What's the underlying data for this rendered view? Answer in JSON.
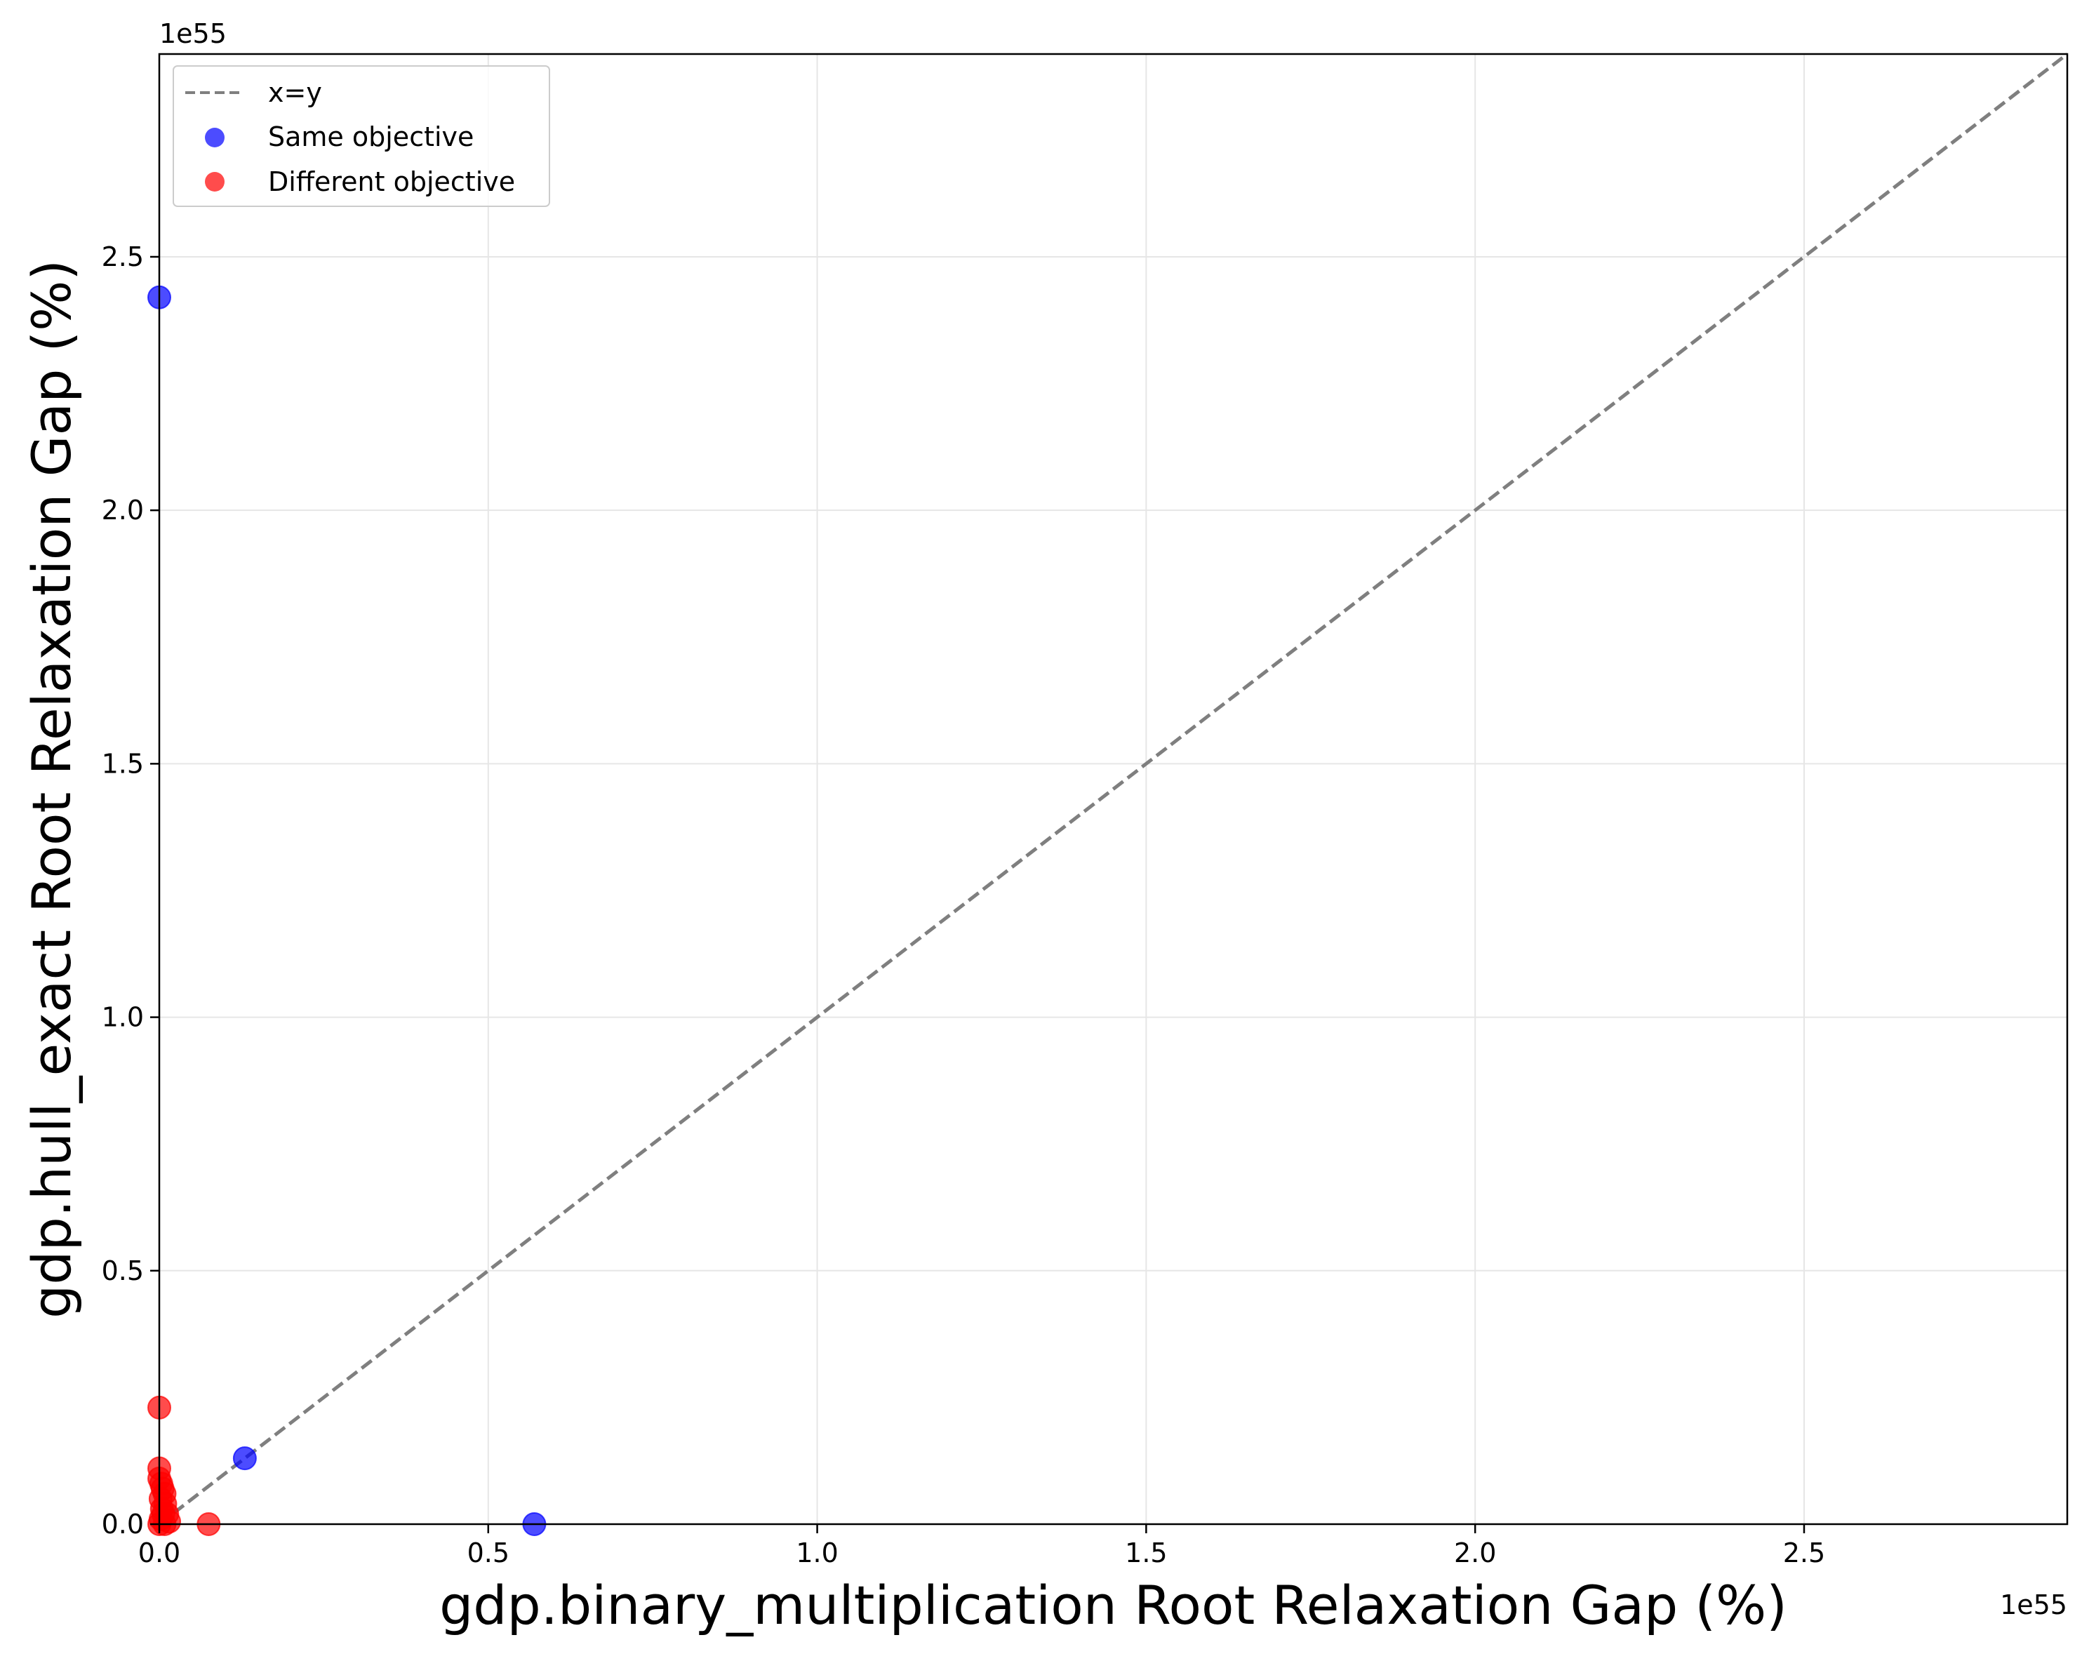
{
  "chart_data": {
    "type": "scatter",
    "xlabel": "gdp.binary_multiplication Root Relaxation Gap (%)",
    "ylabel": "gdp.hull_exact Root Relaxation Gap (%)",
    "x_offset_label": "1e55",
    "y_offset_label": "1e55",
    "xlim": [
      0,
      2.9
    ],
    "ylim": [
      0,
      2.9
    ],
    "x_ticks": [
      {
        "value": 0.0,
        "label": "0.0"
      },
      {
        "value": 0.5,
        "label": "0.5"
      },
      {
        "value": 1.0,
        "label": "1.0"
      },
      {
        "value": 1.5,
        "label": "1.5"
      },
      {
        "value": 2.0,
        "label": "2.0"
      },
      {
        "value": 2.5,
        "label": "2.5"
      }
    ],
    "y_ticks": [
      {
        "value": 0.0,
        "label": "0.0"
      },
      {
        "value": 0.5,
        "label": "0.5"
      },
      {
        "value": 1.0,
        "label": "1.0"
      },
      {
        "value": 1.5,
        "label": "1.5"
      },
      {
        "value": 2.0,
        "label": "2.0"
      },
      {
        "value": 2.5,
        "label": "2.5"
      }
    ],
    "grid": true,
    "legend_position": "top-left",
    "reference_line": {
      "label": "x=y",
      "color": "#7f7f7f",
      "style": "dashed"
    },
    "series": [
      {
        "name": "Same objective",
        "color": "#0000ff",
        "points": [
          {
            "x": 0.0,
            "y": 2.42
          },
          {
            "x": 0.13,
            "y": 0.13
          },
          {
            "x": 0.57,
            "y": 0.0
          }
        ]
      },
      {
        "name": "Different objective",
        "color": "#ff0000",
        "points": [
          {
            "x": 0.0,
            "y": 0.23
          },
          {
            "x": 0.0,
            "y": 0.11
          },
          {
            "x": 0.0,
            "y": 0.09
          },
          {
            "x": 0.003,
            "y": 0.08
          },
          {
            "x": 0.005,
            "y": 0.07
          },
          {
            "x": 0.008,
            "y": 0.06
          },
          {
            "x": 0.002,
            "y": 0.05
          },
          {
            "x": 0.009,
            "y": 0.04
          },
          {
            "x": 0.004,
            "y": 0.03
          },
          {
            "x": 0.012,
            "y": 0.02
          },
          {
            "x": 0.006,
            "y": 0.02
          },
          {
            "x": 0.002,
            "y": 0.01
          },
          {
            "x": 0.015,
            "y": 0.005
          },
          {
            "x": 0.008,
            "y": 0.0
          },
          {
            "x": 0.0,
            "y": 0.0
          },
          {
            "x": 0.075,
            "y": 0.0
          }
        ]
      }
    ]
  }
}
